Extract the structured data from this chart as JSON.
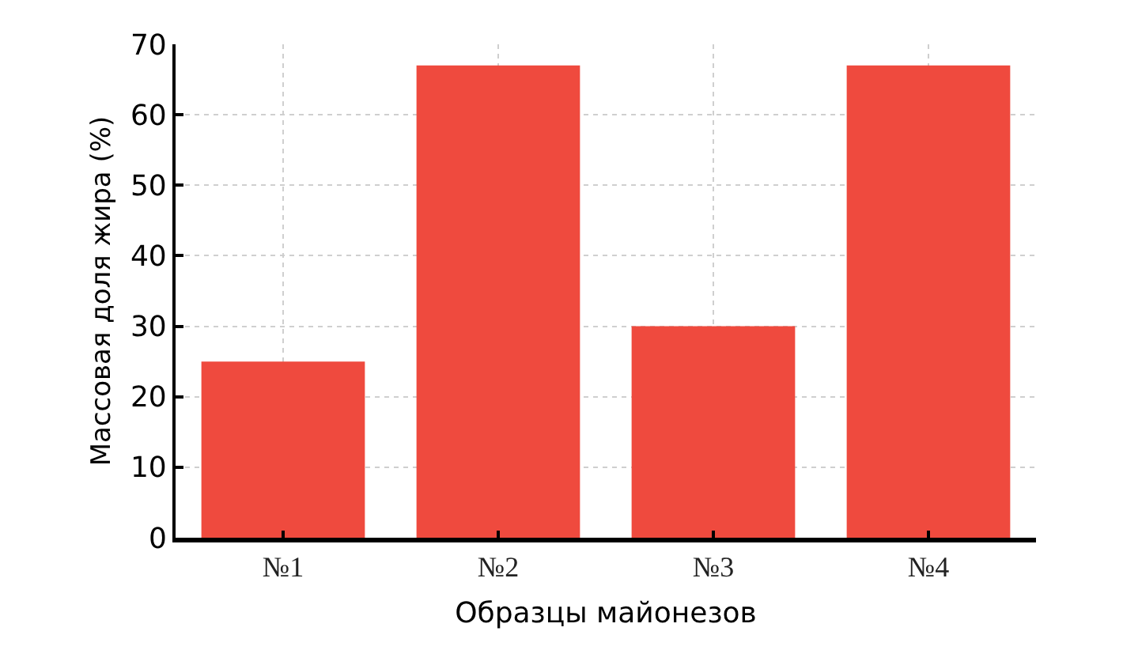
{
  "chart_data": {
    "type": "bar",
    "xlabel": "Образцы майонезов",
    "ylabel": "Массовая доля жира (%)",
    "categories": [
      "№1",
      "№2",
      "№3",
      "№4"
    ],
    "values": [
      25,
      67,
      30,
      67
    ],
    "color": "#ef4a3e",
    "ylim": [
      0,
      70
    ],
    "yticks": [
      0,
      10,
      20,
      30,
      40,
      50,
      60,
      70
    ],
    "grid": true
  }
}
